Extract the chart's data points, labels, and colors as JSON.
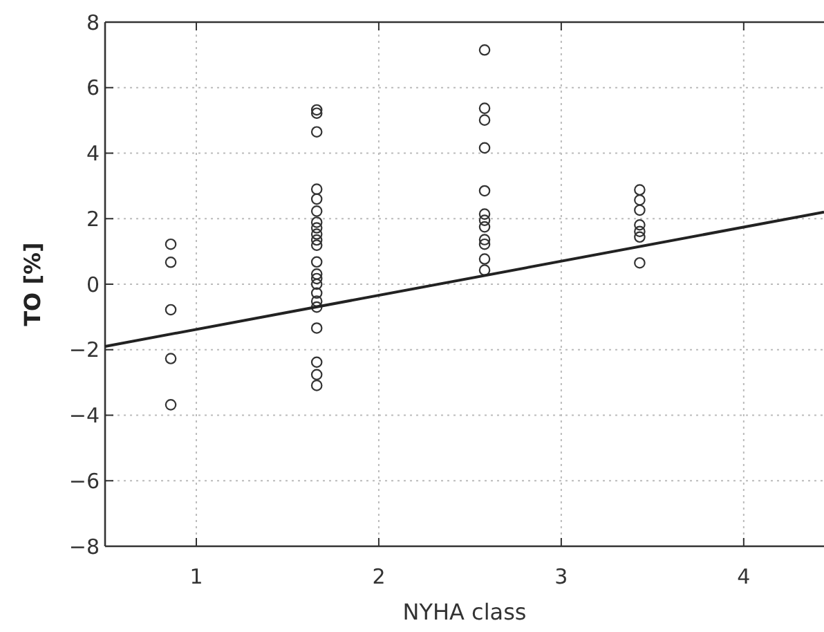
{
  "chart_data": {
    "type": "scatter",
    "xlabel": "NYHA class",
    "ylabel": "TO [%]",
    "xlim": [
      0.5,
      4.44
    ],
    "xticks": [
      1,
      2,
      3,
      4
    ],
    "ylim": [
      -8,
      8
    ],
    "yticks": [
      -8,
      -6,
      -4,
      -2,
      0,
      2,
      4,
      6,
      8
    ],
    "grid": true,
    "marker": "circle",
    "series": [
      {
        "color": "#333333",
        "x": [
          0.86,
          0.86,
          0.86,
          0.86,
          0.86
        ],
        "values": [
          1.22,
          0.67,
          -0.78,
          -2.27,
          -3.68
        ]
      },
      {
        "color": "#333333",
        "x": [
          1.66,
          1.66,
          1.66,
          1.66,
          1.66,
          1.66,
          1.66,
          1.66,
          1.66,
          1.66,
          1.66,
          1.66,
          1.66,
          1.66,
          1.66,
          1.66,
          1.66,
          1.66,
          1.66,
          1.66,
          1.66,
          1.66
        ],
        "values": [
          5.32,
          5.22,
          4.65,
          2.9,
          2.6,
          2.23,
          1.89,
          1.72,
          1.53,
          1.35,
          1.19,
          0.68,
          0.31,
          0.17,
          0,
          -0.27,
          -0.52,
          -0.7,
          -1.34,
          -2.38,
          -2.76,
          -3.09
        ]
      },
      {
        "color": "#333333",
        "x": [
          2.58,
          2.58,
          2.58,
          2.58,
          2.58,
          2.58,
          2.58,
          2.58,
          2.58,
          2.58,
          2.58,
          2.58
        ],
        "values": [
          7.15,
          5.37,
          5.01,
          4.16,
          2.85,
          2.14,
          1.95,
          1.75,
          1.36,
          1.22,
          0.77,
          0.43
        ]
      },
      {
        "color": "#333333",
        "x": [
          3.43,
          3.43,
          3.43,
          3.43,
          3.43,
          3.43,
          3.43
        ],
        "values": [
          2.88,
          2.57,
          2.26,
          1.81,
          1.61,
          1.44,
          0.65
        ]
      },
      {
        "type": "line",
        "color": "#222222",
        "marker": "none",
        "line_style": "solid",
        "x": [
          0.5,
          4.44
        ],
        "values": [
          -1.9,
          2.2
        ]
      }
    ]
  }
}
